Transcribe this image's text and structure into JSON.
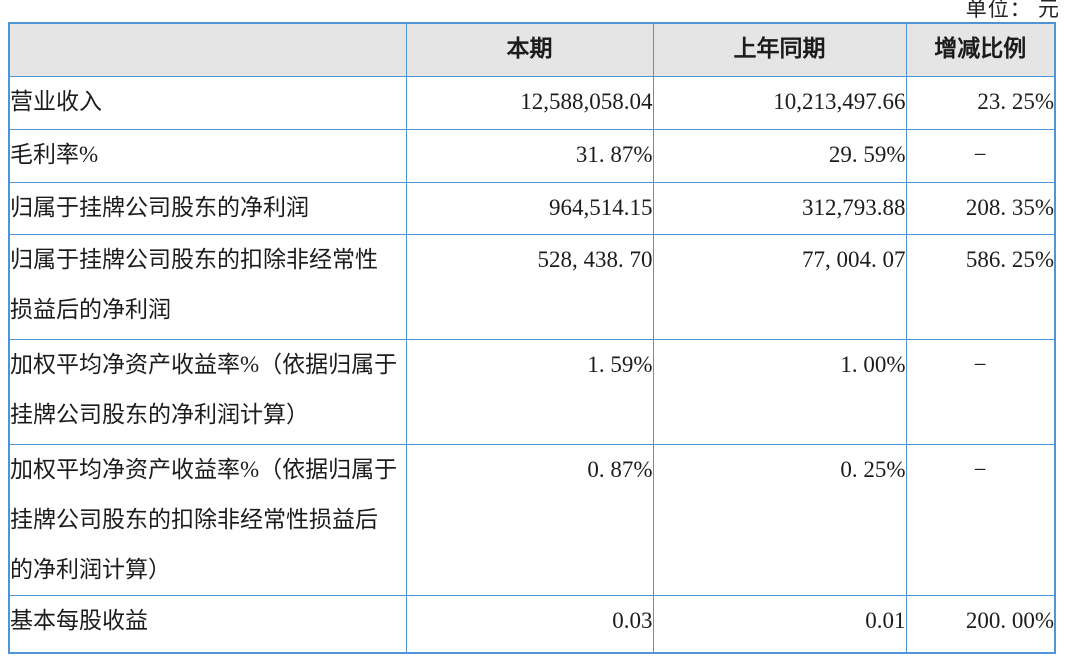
{
  "page": {
    "unit_label": "单位： 元"
  },
  "table": {
    "border_color": "#4f94d6",
    "header_bg": "#e5e5e5",
    "columns": [
      "",
      "本期",
      "上年同期",
      "增减比例"
    ],
    "rows": [
      {
        "label": "营业收入",
        "current": "12,588,058.04",
        "prior": "10,213,497.66",
        "change": "23. 25%"
      },
      {
        "label": "毛利率%",
        "current": "31. 87%",
        "prior": "29. 59%",
        "change": "−"
      },
      {
        "label": "归属于挂牌公司股东的净利润",
        "current": "964,514.15",
        "prior": "312,793.88",
        "change": "208. 35%"
      },
      {
        "label": "归属于挂牌公司股东的扣除非经常性\n损益后的净利润",
        "current": "528, 438. 70",
        "prior": "77, 004. 07",
        "change": "586. 25%"
      },
      {
        "label": "加权平均净资产收益率%（依据归属于\n挂牌公司股东的净利润计算）",
        "current": "1. 59%",
        "prior": "1. 00%",
        "change": "−"
      },
      {
        "label": "加权平均净资产收益率%（依据归属于\n挂牌公司股东的扣除非经常性损益后\n的净利润计算）",
        "current": "0. 87%",
        "prior": "0. 25%",
        "change": "−"
      },
      {
        "label": "基本每股收益",
        "current": "0.03",
        "prior": "0.01",
        "change": "200. 00%"
      }
    ]
  }
}
